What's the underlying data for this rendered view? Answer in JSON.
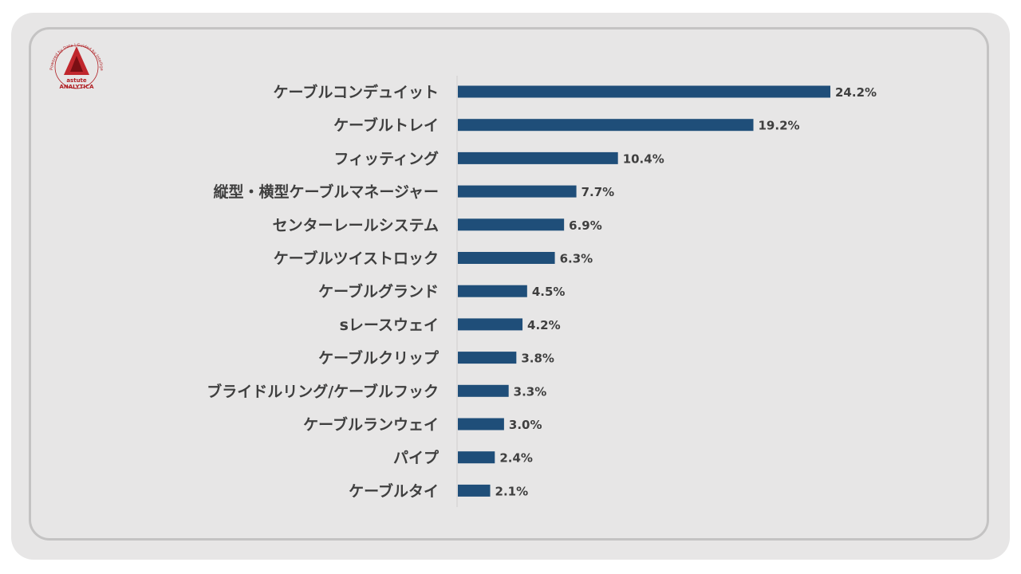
{
  "logo": {
    "ring_text": "Powered by Data | Guided by Intelligence",
    "name": "astute",
    "sub": "ANALYTICA",
    "color": "#b01e23"
  },
  "chart_data": {
    "type": "bar",
    "orientation": "horizontal",
    "title": "",
    "xlabel": "",
    "ylabel": "",
    "bar_color": "#1f4e79",
    "value_suffix": "%",
    "categories": [
      "ケーブルコンデュイット",
      "ケーブルトレイ",
      "フィッティング",
      "縦型・横型ケーブルマネージャー",
      "センターレールシステム",
      "ケーブルツイストロック",
      "ケーブルグランド",
      "sレースウェイ",
      "ケーブルクリップ",
      "ブライドルリング/ケーブルフック",
      "ケーブルランウェイ",
      "パイプ",
      "ケーブルタイ"
    ],
    "values": [
      24.2,
      19.2,
      10.4,
      7.7,
      6.9,
      6.3,
      4.5,
      4.2,
      3.8,
      3.3,
      3.0,
      2.4,
      2.1
    ],
    "value_labels": [
      "24.2%",
      "19.2%",
      "10.4%",
      "7.7%",
      "6.9%",
      "6.3%",
      "4.5%",
      "4.2%",
      "3.8%",
      "3.3%",
      "3.0%",
      "2.4%",
      "2.1%"
    ]
  }
}
